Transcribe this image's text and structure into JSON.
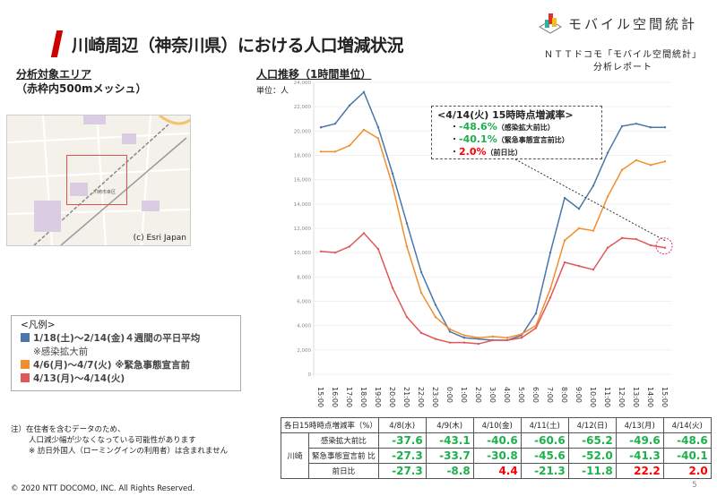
{
  "header": {
    "title": "川崎周辺（神奈川県）における人口増減状況",
    "logo_text": "モバイル空間統計",
    "report_line1": "ＮＴＴドコモ「モバイル空間統計」",
    "report_line2": "分析レポート"
  },
  "area": {
    "heading": "分析対象エリア",
    "sub": "（赤枠内500mメッシュ）",
    "map_credit": "(c) Esri Japan",
    "map_label": "川崎市幸区"
  },
  "legend": {
    "title": "<凡例>",
    "items": [
      {
        "label": "1/18(土)～2/14(金)４週間の平日平均",
        "sub": "※感染拡大前",
        "color": "#4a76a8"
      },
      {
        "label": "4/6(月)～4/7(火) ※緊急事態宣言前",
        "color": "#f28e2b"
      },
      {
        "label": "4/13(月)～4/14(火)",
        "color": "#e15759"
      }
    ]
  },
  "notes": [
    "注）在住者を含むデータのため、",
    "人口減少幅が少なくなっている可能性があります",
    "※ 訪日外国人（ローミングインの利用者）は含まれません"
  ],
  "copyright": "© 2020 NTT DOCOMO, INC. All Rights Reserved.",
  "page_number": "5",
  "chart_section": {
    "heading": "人口推移（1時間単位）",
    "unit": "単位：人"
  },
  "callout": {
    "title": "<4/14(火) 15時時点増減率>",
    "items": [
      {
        "value": "-48.6%",
        "label": "（感染拡大前比）"
      },
      {
        "value": "-40.1%",
        "label": "（緊急事態宣言前比）"
      },
      {
        "value": "2.0%",
        "label": "（前日比）"
      }
    ]
  },
  "chart_data": {
    "type": "line",
    "ylim": [
      0,
      24000
    ],
    "yticks": [
      0,
      2000,
      4000,
      6000,
      8000,
      10000,
      12000,
      14000,
      16000,
      18000,
      20000,
      22000,
      24000
    ],
    "ytick_labels": [
      "0",
      "2,000",
      "4,000",
      "6,000",
      "8,000",
      "10,000",
      "12,000",
      "14,000",
      "16,000",
      "18,000",
      "20,000",
      "22,000",
      "24,000"
    ],
    "x": [
      "15:00",
      "16:00",
      "17:00",
      "18:00",
      "19:00",
      "20:00",
      "21:00",
      "22:00",
      "23:00",
      "0:00",
      "1:00",
      "2:00",
      "3:00",
      "4:00",
      "5:00",
      "6:00",
      "7:00",
      "8:00",
      "9:00",
      "10:00",
      "11:00",
      "12:00",
      "13:00",
      "14:00",
      "15:00"
    ],
    "series": [
      {
        "name": "1/18(土)～2/14(金)４週間の平日平均",
        "color": "#4a76a8",
        "values": [
          20300,
          20600,
          22100,
          23200,
          20300,
          16500,
          12400,
          8400,
          5700,
          3500,
          3000,
          2900,
          2800,
          2800,
          3200,
          5000,
          10000,
          14500,
          13600,
          15500,
          18200,
          20400,
          20600,
          20300,
          20300
        ]
      },
      {
        "name": "4/6(月)～4/7(火)",
        "color": "#f28e2b",
        "values": [
          18300,
          18300,
          18800,
          20100,
          19400,
          15500,
          10500,
          6700,
          4700,
          3700,
          3200,
          3000,
          3100,
          3000,
          3300,
          4000,
          7000,
          11000,
          12000,
          11800,
          14600,
          16800,
          17600,
          17200,
          17500
        ]
      },
      {
        "name": "4/13(月)～4/14(火)",
        "color": "#e15759",
        "values": [
          10100,
          10000,
          10500,
          11600,
          10300,
          7100,
          4700,
          3400,
          2900,
          2600,
          2600,
          2500,
          2800,
          2800,
          3000,
          3800,
          6300,
          9200,
          8900,
          8600,
          10400,
          11200,
          11100,
          10600,
          10400
        ]
      }
    ]
  },
  "table": {
    "header": "各日15時時点増減率（%）",
    "dates": [
      "4/8(水)",
      "4/9(木)",
      "4/10(金)",
      "4/11(土)",
      "4/12(日)",
      "4/13(月)",
      "4/14(火)"
    ],
    "region": "川崎",
    "rows": [
      {
        "label": "感染拡大前比",
        "values": [
          "-37.6",
          "-43.1",
          "-40.6",
          "-60.6",
          "-65.2",
          "-49.6",
          "-48.6"
        ]
      },
      {
        "label": "緊急事態宣言前 比",
        "values": [
          "-27.3",
          "-33.7",
          "-30.8",
          "-45.6",
          "-52.0",
          "-41.3",
          "-40.1"
        ]
      },
      {
        "label": "前日比",
        "values": [
          "-27.3",
          "-8.8",
          "4.4",
          "-21.3",
          "-11.8",
          "22.2",
          "2.0"
        ]
      }
    ]
  }
}
